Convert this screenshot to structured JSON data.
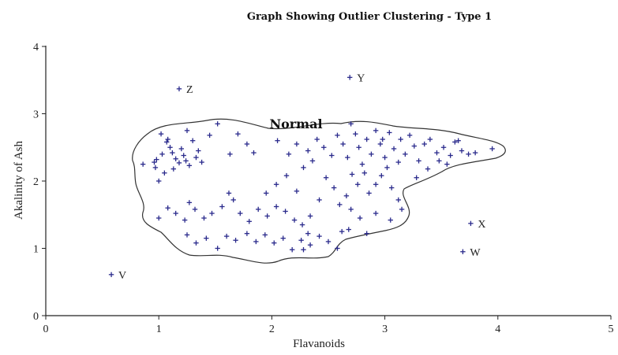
{
  "chart_data": {
    "type": "scatter",
    "title": "Graph Showing Outlier Clustering - Type 1",
    "xlabel": "Flavanoids",
    "ylabel": "Akalinity of Ash",
    "xlim": [
      0,
      5
    ],
    "ylim": [
      0,
      4
    ],
    "xticks": [
      "0",
      "1",
      "2",
      "3",
      "4",
      "5"
    ],
    "yticks": [
      "0",
      "1",
      "2",
      "3",
      "4"
    ],
    "grid": false,
    "marker": "+",
    "marker_color": "#2a2a8c",
    "region_label": "Normal",
    "outliers": [
      {
        "label": "V",
        "x": 0.58,
        "y": 0.61
      },
      {
        "label": "W",
        "x": 3.69,
        "y": 0.95
      },
      {
        "label": "X",
        "x": 3.76,
        "y": 1.37
      },
      {
        "label": "Y",
        "x": 2.69,
        "y": 3.54
      },
      {
        "label": "Z",
        "x": 1.18,
        "y": 3.37
      }
    ],
    "normal_points": [
      [
        0.86,
        2.25
      ],
      [
        0.96,
        2.28
      ],
      [
        0.97,
        2.2
      ],
      [
        0.98,
        2.32
      ],
      [
        1.0,
        2.0
      ],
      [
        1.02,
        2.7
      ],
      [
        1.03,
        2.4
      ],
      [
        1.05,
        2.12
      ],
      [
        1.07,
        2.58
      ],
      [
        1.08,
        2.62
      ],
      [
        1.1,
        2.5
      ],
      [
        1.12,
        2.42
      ],
      [
        1.13,
        2.18
      ],
      [
        1.15,
        2.33
      ],
      [
        1.18,
        2.27
      ],
      [
        1.2,
        2.48
      ],
      [
        1.22,
        2.38
      ],
      [
        1.24,
        2.3
      ],
      [
        1.27,
        2.23
      ],
      [
        1.3,
        2.6
      ],
      [
        1.33,
        2.35
      ],
      [
        1.35,
        2.45
      ],
      [
        1.38,
        2.28
      ],
      [
        1.25,
        2.75
      ],
      [
        1.45,
        2.68
      ],
      [
        1.52,
        2.85
      ],
      [
        1.63,
        2.4
      ],
      [
        1.7,
        2.7
      ],
      [
        1.78,
        2.55
      ],
      [
        1.84,
        2.42
      ],
      [
        1.0,
        1.45
      ],
      [
        1.08,
        1.6
      ],
      [
        1.15,
        1.52
      ],
      [
        1.23,
        1.42
      ],
      [
        1.27,
        1.68
      ],
      [
        1.32,
        1.58
      ],
      [
        1.4,
        1.45
      ],
      [
        1.47,
        1.52
      ],
      [
        1.56,
        1.62
      ],
      [
        1.62,
        1.82
      ],
      [
        1.66,
        1.72
      ],
      [
        1.72,
        1.52
      ],
      [
        1.8,
        1.4
      ],
      [
        1.88,
        1.58
      ],
      [
        1.96,
        1.48
      ],
      [
        2.04,
        1.62
      ],
      [
        2.12,
        1.55
      ],
      [
        2.2,
        1.42
      ],
      [
        2.27,
        1.35
      ],
      [
        2.34,
        1.48
      ],
      [
        1.25,
        1.2
      ],
      [
        1.33,
        1.08
      ],
      [
        1.42,
        1.15
      ],
      [
        1.52,
        1.0
      ],
      [
        1.6,
        1.18
      ],
      [
        1.68,
        1.12
      ],
      [
        1.78,
        1.22
      ],
      [
        1.86,
        1.1
      ],
      [
        1.94,
        1.2
      ],
      [
        2.02,
        1.08
      ],
      [
        2.1,
        1.15
      ],
      [
        2.18,
        0.98
      ],
      [
        2.26,
        1.12
      ],
      [
        2.34,
        1.05
      ],
      [
        2.42,
        1.18
      ],
      [
        2.5,
        1.1
      ],
      [
        2.58,
        1.0
      ],
      [
        2.28,
        0.98
      ],
      [
        2.32,
        1.22
      ],
      [
        2.62,
        1.25
      ],
      [
        1.95,
        1.82
      ],
      [
        2.04,
        1.95
      ],
      [
        2.13,
        2.08
      ],
      [
        2.22,
        1.85
      ],
      [
        2.28,
        2.2
      ],
      [
        2.36,
        2.3
      ],
      [
        2.42,
        1.72
      ],
      [
        2.48,
        2.05
      ],
      [
        2.55,
        1.9
      ],
      [
        2.6,
        1.65
      ],
      [
        2.05,
        2.6
      ],
      [
        2.15,
        2.4
      ],
      [
        2.22,
        2.55
      ],
      [
        2.32,
        2.45
      ],
      [
        2.4,
        2.62
      ],
      [
        2.46,
        2.5
      ],
      [
        2.53,
        2.38
      ],
      [
        2.58,
        2.68
      ],
      [
        2.63,
        2.55
      ],
      [
        2.67,
        2.35
      ],
      [
        2.7,
        2.85
      ],
      [
        2.74,
        2.7
      ],
      [
        2.77,
        2.5
      ],
      [
        2.8,
        2.25
      ],
      [
        2.84,
        2.62
      ],
      [
        2.88,
        2.4
      ],
      [
        2.92,
        2.75
      ],
      [
        2.96,
        2.55
      ],
      [
        3.0,
        2.35
      ],
      [
        3.04,
        2.72
      ],
      [
        2.71,
        2.1
      ],
      [
        2.76,
        1.95
      ],
      [
        2.82,
        2.12
      ],
      [
        2.86,
        1.82
      ],
      [
        2.92,
        1.95
      ],
      [
        2.97,
        2.08
      ],
      [
        3.02,
        2.2
      ],
      [
        3.06,
        1.9
      ],
      [
        3.12,
        1.72
      ],
      [
        2.66,
        1.78
      ],
      [
        2.7,
        1.58
      ],
      [
        2.78,
        1.45
      ],
      [
        2.92,
        1.52
      ],
      [
        3.05,
        1.42
      ],
      [
        3.15,
        1.58
      ],
      [
        2.68,
        1.28
      ],
      [
        2.84,
        1.22
      ],
      [
        3.12,
        2.28
      ],
      [
        3.18,
        2.4
      ],
      [
        3.22,
        2.68
      ],
      [
        3.26,
        2.52
      ],
      [
        3.3,
        2.3
      ],
      [
        3.35,
        2.55
      ],
      [
        3.4,
        2.62
      ],
      [
        3.46,
        2.42
      ],
      [
        3.52,
        2.5
      ],
      [
        3.58,
        2.38
      ],
      [
        3.62,
        2.58
      ],
      [
        3.68,
        2.45
      ],
      [
        3.74,
        2.4
      ],
      [
        3.38,
        2.18
      ],
      [
        3.48,
        2.3
      ],
      [
        3.55,
        2.25
      ],
      [
        3.28,
        2.05
      ],
      [
        3.95,
        2.48
      ],
      [
        3.65,
        2.6
      ],
      [
        3.8,
        2.42
      ],
      [
        3.08,
        2.48
      ],
      [
        2.98,
        2.62
      ],
      [
        3.14,
        2.62
      ]
    ]
  }
}
